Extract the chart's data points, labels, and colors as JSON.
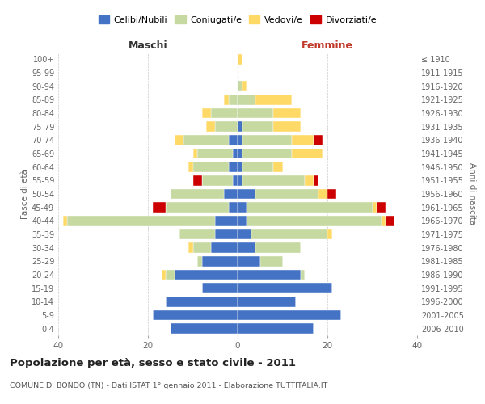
{
  "age_groups": [
    "0-4",
    "5-9",
    "10-14",
    "15-19",
    "20-24",
    "25-29",
    "30-34",
    "35-39",
    "40-44",
    "45-49",
    "50-54",
    "55-59",
    "60-64",
    "65-69",
    "70-74",
    "75-79",
    "80-84",
    "85-89",
    "90-94",
    "95-99",
    "100+"
  ],
  "birth_years": [
    "2006-2010",
    "2001-2005",
    "1996-2000",
    "1991-1995",
    "1986-1990",
    "1981-1985",
    "1976-1980",
    "1971-1975",
    "1966-1970",
    "1961-1965",
    "1956-1960",
    "1951-1955",
    "1946-1950",
    "1941-1945",
    "1936-1940",
    "1931-1935",
    "1926-1930",
    "1921-1925",
    "1916-1920",
    "1911-1915",
    "≤ 1910"
  ],
  "colors": {
    "celibi": "#4472c4",
    "coniugati": "#c5d9a0",
    "vedovi": "#ffd966",
    "divorziati": "#cc0000"
  },
  "maschi": {
    "celibi": [
      15,
      19,
      16,
      8,
      14,
      8,
      6,
      5,
      5,
      2,
      3,
      1,
      2,
      1,
      2,
      0,
      0,
      0,
      0,
      0,
      0
    ],
    "coniugati": [
      0,
      0,
      0,
      0,
      2,
      1,
      4,
      8,
      33,
      14,
      12,
      7,
      8,
      8,
      10,
      5,
      6,
      2,
      0,
      0,
      0
    ],
    "vedovi": [
      0,
      0,
      0,
      0,
      1,
      0,
      1,
      0,
      1,
      0,
      0,
      0,
      1,
      1,
      2,
      2,
      2,
      1,
      0,
      0,
      0
    ],
    "divorziati": [
      0,
      0,
      0,
      0,
      0,
      0,
      0,
      0,
      0,
      3,
      0,
      2,
      0,
      0,
      0,
      0,
      0,
      0,
      0,
      0,
      0
    ]
  },
  "femmine": {
    "celibi": [
      17,
      23,
      13,
      21,
      14,
      5,
      4,
      3,
      2,
      2,
      4,
      1,
      1,
      1,
      1,
      1,
      0,
      0,
      0,
      0,
      0
    ],
    "coniugati": [
      0,
      0,
      0,
      0,
      1,
      5,
      10,
      17,
      30,
      28,
      14,
      14,
      7,
      11,
      11,
      7,
      8,
      4,
      1,
      0,
      0
    ],
    "vedovi": [
      0,
      0,
      0,
      0,
      0,
      0,
      0,
      1,
      1,
      1,
      2,
      2,
      2,
      7,
      5,
      6,
      6,
      8,
      1,
      0,
      1
    ],
    "divorziati": [
      0,
      0,
      0,
      0,
      0,
      0,
      0,
      0,
      2,
      2,
      2,
      1,
      0,
      0,
      2,
      0,
      0,
      0,
      0,
      0,
      0
    ]
  },
  "title": "Popolazione per età, sesso e stato civile - 2011",
  "subtitle": "COMUNE DI BONDO (TN) - Dati ISTAT 1° gennaio 2011 - Elaborazione TUTTITALIA.IT",
  "xlabel_left": "Maschi",
  "xlabel_right": "Femmine",
  "ylabel_left": "Fasce di età",
  "ylabel_right": "Anni di nascita",
  "legend_labels": [
    "Celibi/Nubili",
    "Coniugati/e",
    "Vedovi/e",
    "Divorziati/e"
  ],
  "xlim": 40
}
